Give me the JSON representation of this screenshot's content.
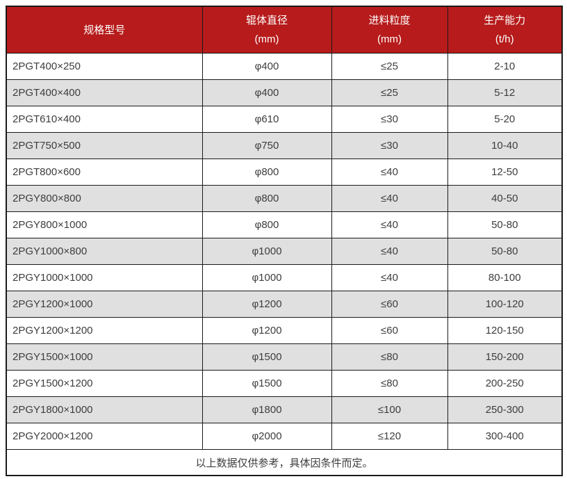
{
  "table": {
    "columns": [
      {
        "label": "规格型号",
        "sub": ""
      },
      {
        "label": "辊体直径",
        "sub": "(mm)"
      },
      {
        "label": "进料粒度",
        "sub": "(mm)"
      },
      {
        "label": "生产能力",
        "sub": "(t/h)"
      }
    ],
    "rows": [
      [
        "2PGT400×250",
        "φ400",
        "≤25",
        "2-10"
      ],
      [
        "2PGT400×400",
        "φ400",
        "≤25",
        "5-12"
      ],
      [
        "2PGT610×400",
        "φ610",
        "≤30",
        "5-20"
      ],
      [
        "2PGT750×500",
        "φ750",
        "≤30",
        "10-40"
      ],
      [
        "2PGT800×600",
        "φ800",
        "≤40",
        "12-50"
      ],
      [
        "2PGY800×800",
        "φ800",
        "≤40",
        "40-50"
      ],
      [
        "2PGY800×1000",
        "φ800",
        "≤40",
        "50-80"
      ],
      [
        "2PGY1000×800",
        "φ1000",
        "≤40",
        "50-80"
      ],
      [
        "2PGY1000×1000",
        "φ1000",
        "≤40",
        "80-100"
      ],
      [
        "2PGY1200×1000",
        "φ1200",
        "≤60",
        "100-120"
      ],
      [
        "2PGY1200×1200",
        "φ1200",
        "≤60",
        "120-150"
      ],
      [
        "2PGY1500×1000",
        "φ1500",
        "≤80",
        "150-200"
      ],
      [
        "2PGY1500×1200",
        "φ1500",
        "≤80",
        "200-250"
      ],
      [
        "2PGY1800×1000",
        "φ1800",
        "≤100",
        "250-300"
      ],
      [
        "2PGY2000×1200",
        "φ2000",
        "≤120",
        "300-400"
      ]
    ],
    "footer": "以上数据仅供参考，具体因条件而定。"
  },
  "colors": {
    "header_bg": "#b71b1b",
    "header_text": "#ffffff",
    "row_bg": "#ffffff",
    "row_alt_bg": "#e0e0e0",
    "border": "#1a1a1a",
    "text": "#3d3d3d"
  }
}
